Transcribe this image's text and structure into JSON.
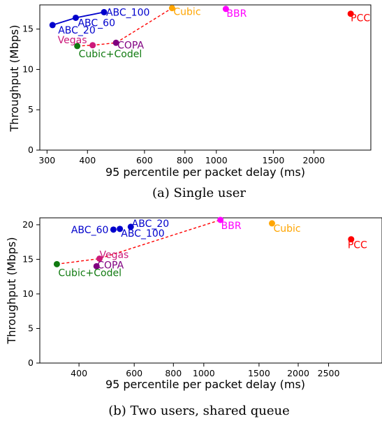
{
  "chart_data": [
    {
      "type": "scatter",
      "caption": "(a) Single user",
      "xlabel": "95 percentile per packet delay (ms)",
      "ylabel": "Throughput (Mbps)",
      "xscale": "log",
      "xlim": [
        285,
        3000
      ],
      "ylim": [
        0,
        18
      ],
      "xticks": [
        300,
        400,
        600,
        800,
        1000,
        1500,
        2000
      ],
      "yticks": [
        0,
        5,
        10,
        15
      ],
      "points": [
        {
          "label": "ABC_20",
          "x": 312,
          "y": 15.5,
          "color": "#0000cc"
        },
        {
          "label": "ABC_60",
          "x": 368,
          "y": 16.4,
          "color": "#0000cc"
        },
        {
          "label": "ABC_100",
          "x": 450,
          "y": 17.1,
          "color": "#0000cc"
        },
        {
          "label": "Vegas",
          "x": 415,
          "y": 13.0,
          "color": "#cc1a7a"
        },
        {
          "label": "COPA",
          "x": 490,
          "y": 13.3,
          "color": "#800080"
        },
        {
          "label": "Cubic+Codel",
          "x": 372,
          "y": 12.9,
          "color": "#107a10"
        },
        {
          "label": "Cubic",
          "x": 730,
          "y": 17.6,
          "color": "#ffa500"
        },
        {
          "label": "BBR",
          "x": 1070,
          "y": 17.5,
          "color": "#ff00ff"
        },
        {
          "label": "PCC",
          "x": 2600,
          "y": 16.9,
          "color": "#ff0000"
        }
      ],
      "abc_curve": [
        "ABC_20",
        "ABC_60",
        "ABC_100"
      ],
      "frontier": [
        "Cubic+Codel",
        "Vegas",
        "COPA",
        "Cubic"
      ]
    },
    {
      "type": "scatter",
      "caption": "(b) Two users, shared queue",
      "xlabel": "95 percentile per packet delay (ms)",
      "ylabel": "Throughput (Mbps)",
      "xscale": "log",
      "xlim": [
        300,
        3700
      ],
      "ylim": [
        0,
        21
      ],
      "xticks": [
        400,
        600,
        800,
        1000,
        1500,
        2000,
        2500
      ],
      "yticks": [
        0,
        5,
        10,
        15,
        20
      ],
      "points": [
        {
          "label": "ABC_60",
          "x": 515,
          "y": 19.3,
          "color": "#0000cc"
        },
        {
          "label": "ABC_20",
          "x": 540,
          "y": 19.4,
          "color": "#0000cc"
        },
        {
          "label": "ABC_100",
          "x": 585,
          "y": 19.7,
          "color": "#0000cc"
        },
        {
          "label": "Vegas",
          "x": 465,
          "y": 15.1,
          "color": "#cc1a7a"
        },
        {
          "label": "COPA",
          "x": 455,
          "y": 14.0,
          "color": "#800080"
        },
        {
          "label": "Cubic+Codel",
          "x": 340,
          "y": 14.3,
          "color": "#107a10"
        },
        {
          "label": "BBR",
          "x": 1130,
          "y": 20.7,
          "color": "#ff00ff"
        },
        {
          "label": "Cubic",
          "x": 1650,
          "y": 20.2,
          "color": "#ffa500"
        },
        {
          "label": "PCC",
          "x": 2950,
          "y": 17.9,
          "color": "#ff0000"
        }
      ],
      "frontier": [
        "Cubic+Codel",
        "Vegas",
        "BBR"
      ]
    }
  ]
}
